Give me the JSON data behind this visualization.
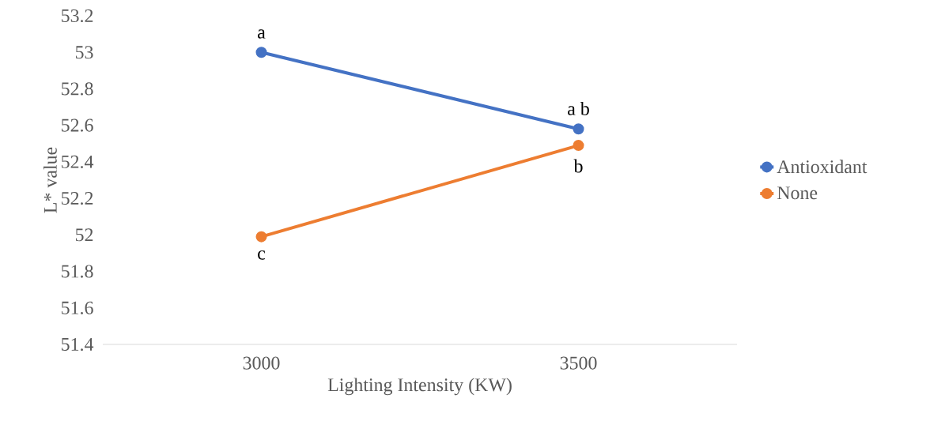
{
  "chart_data": {
    "type": "line",
    "xlabel": "Lighting Intensity (KW)",
    "ylabel": "L* value",
    "categories": [
      "3000",
      "3500"
    ],
    "series": [
      {
        "name": "Antioxidant",
        "color": "#4472c4",
        "values": [
          53.0,
          52.58
        ]
      },
      {
        "name": "None",
        "color": "#ed7d31",
        "values": [
          51.99,
          52.49
        ]
      }
    ],
    "ylim": [
      51.4,
      53.2
    ],
    "yticks": [
      51.4,
      51.6,
      51.8,
      52,
      52.2,
      52.4,
      52.6,
      52.8,
      53,
      53.2
    ],
    "grid": false,
    "legend": "right",
    "marker": "circle",
    "line_style": "solid",
    "annotations": [
      {
        "text": "a",
        "x": "3000",
        "y": 53.0
      },
      {
        "text": "a b",
        "x": "3500",
        "y": 52.58
      },
      {
        "text": "b",
        "x": "3500",
        "y": 52.49
      },
      {
        "text": "c",
        "x": "3000",
        "y": 51.99
      }
    ]
  }
}
